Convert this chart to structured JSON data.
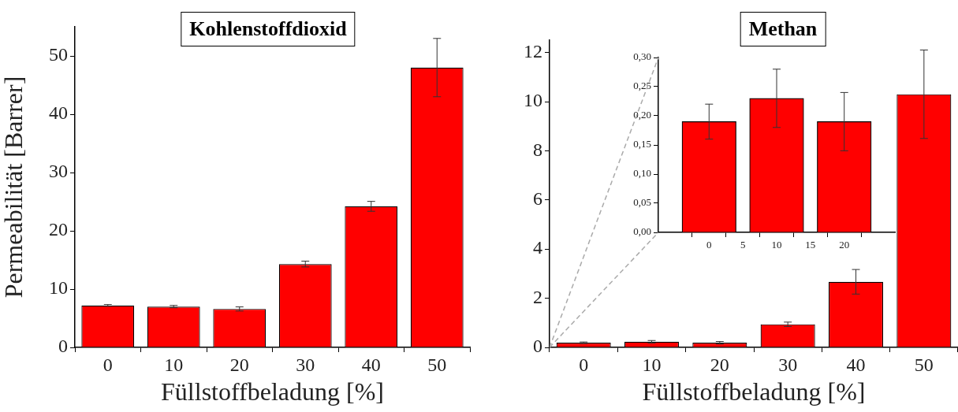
{
  "chart_data": [
    {
      "type": "bar",
      "title": "Kohlenstoffdioxid",
      "xlabel": "Füllstoffbeladung [%]",
      "ylabel": "Permeabilität [Barrer]",
      "categories": [
        "0",
        "10",
        "20",
        "30",
        "40",
        "50"
      ],
      "color": "#ff0000",
      "values": [
        7.2,
        7.0,
        6.6,
        14.3,
        24.2,
        48
      ],
      "errors": [
        0.15,
        0.2,
        0.35,
        0.5,
        0.85,
        5
      ],
      "ylim": [
        0,
        55
      ],
      "yticks": [
        0,
        10,
        20,
        30,
        40,
        50
      ]
    },
    {
      "type": "bar",
      "title": "Methan",
      "xlabel": "Füllstoffbeladung [%]",
      "categories": [
        "0",
        "10",
        "20",
        "30",
        "40",
        "50"
      ],
      "color": "#ff0000",
      "values": [
        0.19,
        0.23,
        0.19,
        0.94,
        2.67,
        10.3
      ],
      "errors": [
        0.03,
        0.05,
        0.05,
        0.09,
        0.5,
        1.8
      ],
      "ylim": [
        0,
        12.5
      ],
      "yticks": [
        0,
        2,
        4,
        6,
        8,
        10,
        12
      ]
    },
    {
      "type": "bar",
      "x": [
        0,
        10,
        20
      ],
      "color": "#ff0000",
      "values": [
        0.19,
        0.23,
        0.19
      ],
      "errors": [
        0.03,
        0.05,
        0.05
      ],
      "xlim": [
        -4,
        24
      ],
      "xticks": [
        0,
        5,
        10,
        15,
        20
      ],
      "ylim": [
        0,
        0.3
      ],
      "yticks": [
        {
          "value": 0,
          "label": "0,00"
        },
        {
          "value": 0.05,
          "label": "0,05"
        },
        {
          "value": 0.1,
          "label": "0,10"
        },
        {
          "value": 0.15,
          "label": "0,15"
        },
        {
          "value": 0.2,
          "label": "0,20"
        },
        {
          "value": 0.25,
          "label": "0,25"
        },
        {
          "value": 0.3,
          "label": "0,30"
        }
      ]
    }
  ]
}
